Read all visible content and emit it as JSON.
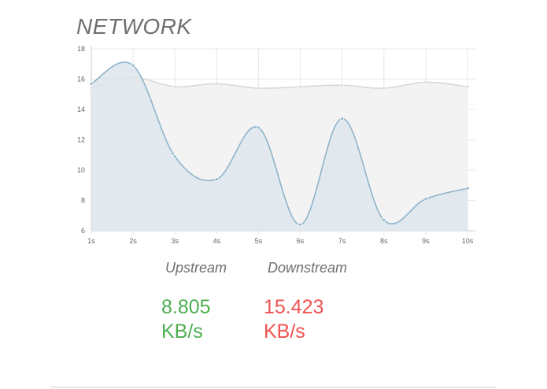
{
  "panel": {
    "title": "NETWORK"
  },
  "chart_data": {
    "type": "area",
    "x": [
      "1s",
      "2s",
      "3s",
      "4s",
      "5s",
      "6s",
      "7s",
      "8s",
      "9s",
      "10s"
    ],
    "ylim": [
      6,
      18
    ],
    "yticks": [
      6,
      8,
      10,
      12,
      14,
      16,
      18
    ],
    "grid": true,
    "smooth": true,
    "series": [
      {
        "name": "Upstream",
        "values": [
          15.7,
          16.9,
          10.9,
          9.4,
          12.8,
          6.4,
          13.4,
          6.7,
          8.1,
          8.8
        ],
        "stroke": "#8fb3c9",
        "fill": "#dde6ec"
      },
      {
        "name": "Downstream",
        "values": [
          15.4,
          16.1,
          15.5,
          15.7,
          15.4,
          15.5,
          15.6,
          15.4,
          15.8,
          15.5
        ],
        "stroke": "#d8d8d8",
        "fill": "#f3f3f3"
      }
    ]
  },
  "stats": {
    "upstream": {
      "label": "Upstream",
      "value": "8.805",
      "unit": "KB/s",
      "color": "#4caf50"
    },
    "downstream": {
      "label": "Downstream",
      "value": "15.423",
      "unit": "KB/s",
      "color": "#ef5350"
    }
  }
}
